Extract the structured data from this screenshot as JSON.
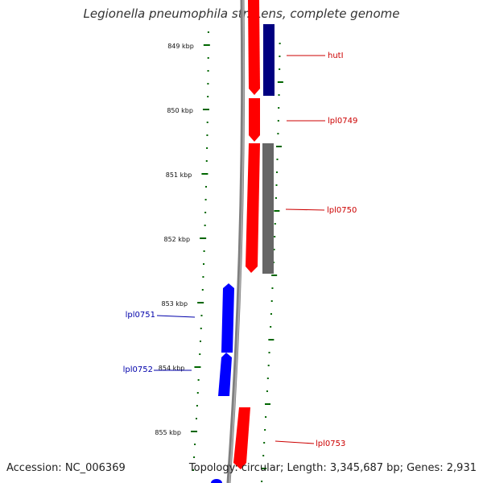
{
  "title": "Legionella pneumophila str. Lens, complete genome",
  "footer": {
    "accession": "Accession: NC_006369",
    "summary": "Topology: circular; Length: 3,345,687 bp; Genes: 2,931"
  },
  "colors": {
    "forward_gene": "#ff0000",
    "reverse_gene": "#0000ff",
    "other_gene_dark": "#000080",
    "other_gene_gray": "#666666",
    "tick": "#006600",
    "backbone": "#7f7f7f",
    "forward_label": "#cc0000",
    "reverse_label": "#0000aa"
  },
  "scale": {
    "tick_labels": [
      "849 kbp",
      "850 kbp",
      "851 kbp",
      "852 kbp",
      "853 kbp",
      "854 kbp",
      "855 kbp"
    ]
  },
  "genes": [
    {
      "label": "hutI",
      "strand": "forward"
    },
    {
      "label": "lpl0749",
      "strand": "forward"
    },
    {
      "label": "lpl0750",
      "strand": "forward"
    },
    {
      "label": "lpl0751",
      "strand": "reverse"
    },
    {
      "label": "lpl0752",
      "strand": "reverse"
    },
    {
      "label": "lpl0753",
      "strand": "forward"
    }
  ]
}
